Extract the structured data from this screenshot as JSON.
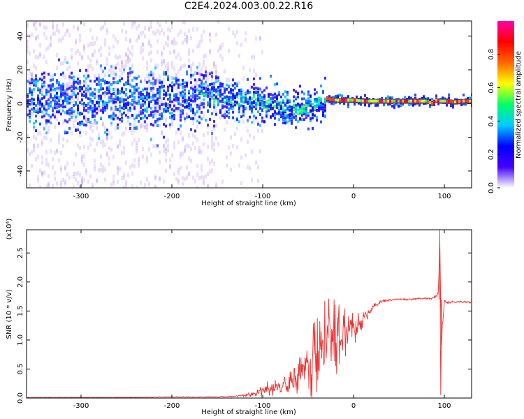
{
  "figure": {
    "title": "C2E4.2024.003.00.22.R16"
  },
  "chart_data": [
    {
      "type": "heatmap",
      "xlabel": "Height of straight line (km)",
      "ylabel": "Frequency (Hz)",
      "xlim": [
        -360,
        130
      ],
      "ylim": [
        -50,
        49
      ],
      "x_ticks": [
        -300,
        -200,
        -100,
        0,
        100
      ],
      "x_tick_labels": [
        "-300",
        "-200",
        "-100",
        "0",
        "100"
      ],
      "y_ticks": [
        -40,
        -20,
        0,
        20,
        40
      ],
      "y_tick_labels": [
        "-40",
        "-20",
        "0",
        "20",
        "40"
      ],
      "colorbar": {
        "label": "Normalized spectral amplitude",
        "range": [
          0.0,
          1.0
        ],
        "ticks": [
          0.0,
          0.2,
          0.4,
          0.6,
          0.8
        ],
        "tick_labels": [
          "0.0",
          "0.2",
          "0.4",
          "0.6",
          "0.8"
        ],
        "colormap": [
          "#ffffff",
          "#4400ff",
          "#0000ff",
          "#00ccff",
          "#00ff66",
          "#ffff00",
          "#ff6600",
          "#ff0000",
          "#ff00aa"
        ]
      },
      "ridge": {
        "x": [
          -355,
          -300,
          -250,
          -200,
          -180,
          -150,
          -120,
          -100,
          -90,
          -80,
          -70,
          -60,
          -50,
          -40,
          -35,
          -30,
          -20,
          -10,
          0,
          10,
          30,
          60,
          80,
          85,
          90,
          95,
          100,
          110,
          120,
          130
        ],
        "y": [
          2,
          2,
          2,
          2,
          4,
          3,
          2,
          0,
          -1,
          -2,
          -3,
          -4,
          -3,
          0,
          2,
          3,
          2,
          2,
          2,
          1.5,
          1.5,
          1.5,
          1.5,
          0,
          2,
          1.5,
          1.5,
          1,
          1.5,
          1.5
        ]
      },
      "grid": false
    },
    {
      "type": "line",
      "xlabel": "Height of straight line (km)",
      "ylabel": "SNR (10 * v/v)",
      "y_multiplier_label": "(x10⁴)",
      "xlim": [
        -360,
        130
      ],
      "ylim": [
        0,
        2.9
      ],
      "x_ticks": [
        -300,
        -200,
        -100,
        0,
        100
      ],
      "x_tick_labels": [
        "-300",
        "-200",
        "-100",
        "0",
        "100"
      ],
      "y_ticks": [
        0.0,
        0.5,
        1.0,
        1.5,
        2.0,
        2.5
      ],
      "y_tick_labels": [
        "0.0",
        "0.5",
        "1.0",
        "1.5",
        "2.0",
        "2.5"
      ],
      "grid": false,
      "series": [
        {
          "color": "#ee3333",
          "x": [
            -360,
            -330,
            -300,
            -270,
            -240,
            -210,
            -180,
            -150,
            -130,
            -120,
            -110,
            -100,
            -90,
            -80,
            -70,
            -60,
            -50,
            -40,
            -30,
            -20,
            -10,
            0,
            10,
            20,
            30,
            40,
            50,
            60,
            70,
            80,
            90,
            93,
            95,
            97,
            100,
            110,
            120,
            130
          ],
          "y": [
            0.01,
            0.01,
            0.01,
            0.01,
            0.01,
            0.02,
            0.02,
            0.02,
            0.03,
            0.05,
            0.08,
            0.12,
            0.16,
            0.18,
            0.22,
            0.33,
            0.48,
            0.62,
            0.82,
            0.95,
            1.05,
            1.18,
            1.35,
            1.55,
            1.66,
            1.69,
            1.7,
            1.7,
            1.71,
            1.72,
            1.73,
            1.78,
            2.6,
            1.05,
            1.66,
            1.65,
            1.66,
            1.65
          ],
          "spread": [
            0.005,
            0.005,
            0.005,
            0.005,
            0.005,
            0.005,
            0.006,
            0.008,
            0.01,
            0.03,
            0.06,
            0.12,
            0.14,
            0.16,
            0.2,
            0.3,
            0.45,
            0.7,
            0.7,
            0.6,
            0.5,
            0.3,
            0.15,
            0.06,
            0.03,
            0.02,
            0.02,
            0.02,
            0.02,
            0.02,
            0.03,
            0.05,
            0.2,
            0.4,
            0.03,
            0.02,
            0.02,
            0.02
          ]
        }
      ]
    }
  ]
}
